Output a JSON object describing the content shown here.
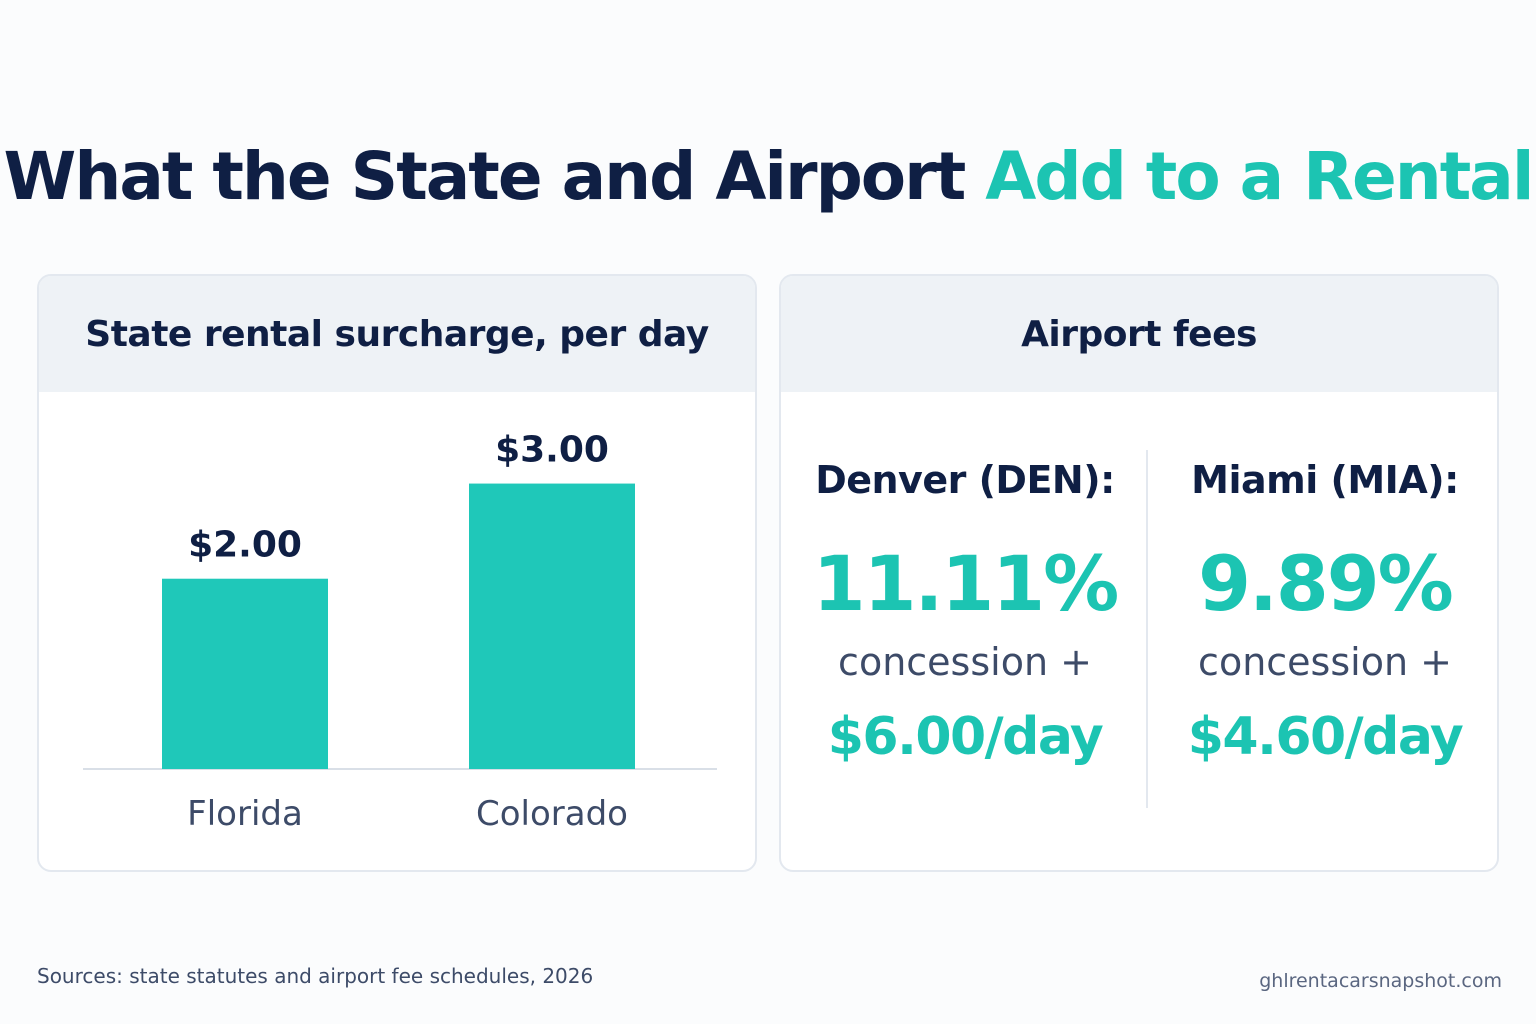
{
  "title": {
    "main": "What the State and Airport",
    "accent": "Add to a Rental"
  },
  "colors": {
    "navy": "#0f1f44",
    "teal": "#1cc4b2",
    "bar": "#1fc8b9"
  },
  "state_panel": {
    "header": "State rental surcharge, per day"
  },
  "airport_panel": {
    "header": "Airport fees",
    "airports": [
      {
        "name": "Denver (DEN):",
        "percent": "11.11%",
        "concession": "concession +",
        "daily": "$6.00/day"
      },
      {
        "name": "Miami (MIA):",
        "percent": "9.89%",
        "concession": "concession +",
        "daily": "$4.60/day"
      }
    ]
  },
  "chart_data": {
    "type": "bar",
    "title": "State rental surcharge, per day",
    "categories": [
      "Florida",
      "Colorado"
    ],
    "values": [
      2.0,
      3.0
    ],
    "labels": [
      "$2.00",
      "$3.00"
    ],
    "xlabel": "",
    "ylabel": "",
    "ylim": [
      0,
      3.5
    ]
  },
  "footer": {
    "sources": "Sources: state statutes and airport fee schedules, 2026",
    "site": "ghlrentacarsnapshot.com"
  }
}
